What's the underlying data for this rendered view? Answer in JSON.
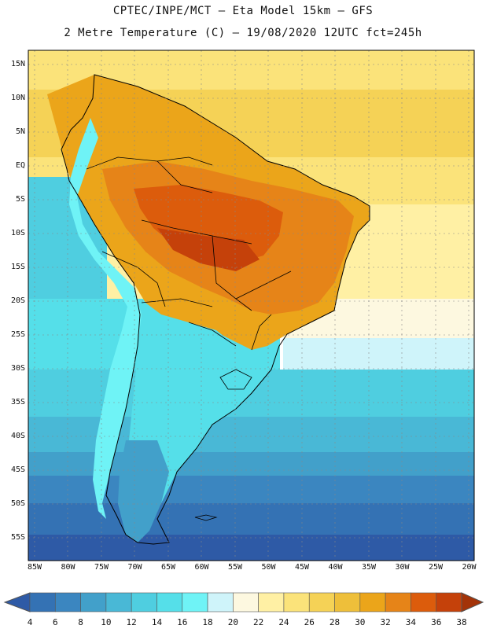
{
  "title_line1": "CPTEC/INPE/MCT –  Eta Model 15km – GFS",
  "title_line2": "2 Metre Temperature (C) – 19/08/2020 12UTC fct=245h",
  "lat_labels": [
    "15N",
    "10N",
    "5N",
    "EQ",
    "5S",
    "10S",
    "15S",
    "20S",
    "25S",
    "30S",
    "35S",
    "40S",
    "45S",
    "50S",
    "55S"
  ],
  "lon_labels": [
    "85W",
    "80W",
    "75W",
    "70W",
    "65W",
    "60W",
    "55W",
    "50W",
    "45W",
    "40W",
    "35W",
    "30W",
    "25W",
    "20W"
  ],
  "colorbar": {
    "values": [
      "4",
      "6",
      "8",
      "10",
      "12",
      "14",
      "16",
      "18",
      "20",
      "22",
      "24",
      "26",
      "28",
      "30",
      "32",
      "34",
      "36",
      "38"
    ],
    "colors": [
      "#2e5aa6",
      "#3472b4",
      "#3b86c0",
      "#42a0ca",
      "#49b8d6",
      "#4fcee0",
      "#55dfe9",
      "#6ff3f6",
      "#cff4fa",
      "#fdf8e0",
      "#fff0a4",
      "#fbe37a",
      "#f5d256",
      "#eebf3a",
      "#eba51a",
      "#e68418",
      "#dc5c0c",
      "#c5410a",
      "#a33308"
    ]
  }
}
